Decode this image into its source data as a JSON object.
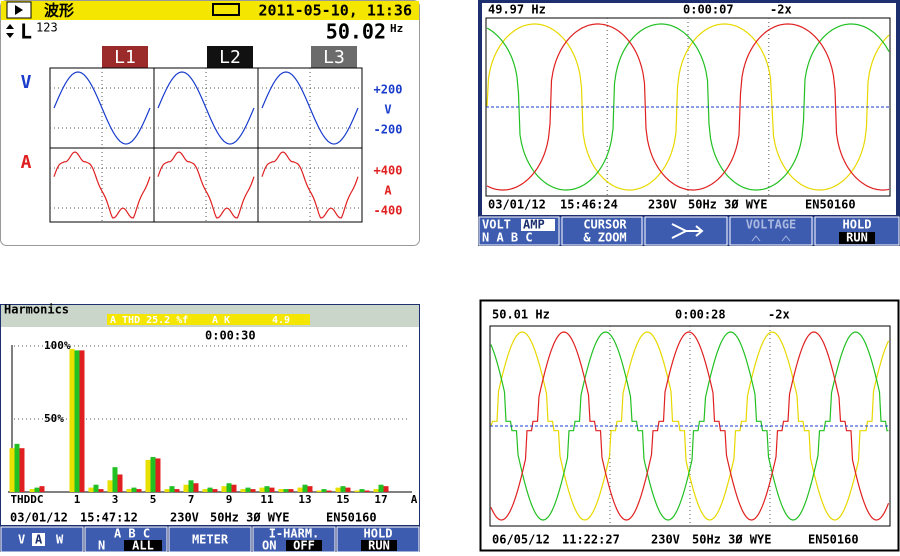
{
  "scope_panel": {
    "title": "波形",
    "datetime": "2011-05-10, 11:36",
    "phase_label": "L",
    "phase_sup": "123",
    "frequency": "50.02",
    "frequency_unit": "Hz",
    "tabs": [
      "L1",
      "L2",
      "L3"
    ],
    "voltage_label": "V",
    "current_label": "A",
    "voltage_scale": [
      "+200",
      "V",
      "-200"
    ],
    "current_scale": [
      "+400",
      "A",
      "-400"
    ]
  },
  "waveform_panel_1": {
    "frequency": "49.97 Hz",
    "elapsed": "0:00:07",
    "zoom": "-2x",
    "date": "03/01/12",
    "time": "15:46:24",
    "nominal_voltage": "230V",
    "config": "50Hz 3Ø WYE",
    "standard": "EN50160",
    "buttons": {
      "volt": "VOLT",
      "amp": "AMP",
      "phases": "N A B C",
      "cursor": "CURSOR",
      "zoom": "& ZOOM",
      "voltage": "VOLTAGE",
      "hold": "HOLD",
      "run": "RUN"
    }
  },
  "harmonics_panel": {
    "title": "Harmonics",
    "thd": "A THD 25.2 %f",
    "k_label": "A K",
    "k_value": "4.9",
    "elapsed": "0:00:30",
    "date": "03/01/12",
    "time": "15:47:12",
    "nominal_voltage": "230V",
    "config": "50Hz 3Ø WYE",
    "standard": "EN50160",
    "chart": {
      "type": "bar",
      "ylim": [
        0,
        100
      ],
      "yticks": [
        {
          "value": 100,
          "label": "100%"
        },
        {
          "value": 50,
          "label": "50%"
        }
      ],
      "x_labels": [
        "THDDC",
        "1",
        "3",
        "5",
        "7",
        "9",
        "11",
        "13",
        "15",
        "17",
        "A"
      ],
      "series": [
        {
          "color": "#e8e000",
          "values": [
            30,
            2,
            98,
            3,
            8,
            2,
            22,
            2,
            5,
            2,
            4,
            2,
            3,
            2,
            3,
            1,
            3,
            1,
            2
          ]
        },
        {
          "color": "#22c022",
          "values": [
            33,
            3,
            97,
            5,
            17,
            3,
            24,
            4,
            8,
            3,
            6,
            3,
            4,
            2,
            5,
            2,
            4,
            2,
            5
          ]
        },
        {
          "color": "#e02020",
          "values": [
            30,
            4,
            97,
            2,
            12,
            2,
            23,
            2,
            6,
            2,
            5,
            2,
            3,
            2,
            4,
            1,
            3,
            1,
            4
          ]
        }
      ]
    },
    "buttons": {
      "v": "V",
      "a": "A",
      "w": "W",
      "abc": "A B C",
      "n": "N",
      "all": "ALL",
      "meter": "METER",
      "iharm": "I-HARM.",
      "on": "ON",
      "off": "OFF",
      "hold": "HOLD",
      "run": "RUN"
    }
  },
  "waveform_panel_2": {
    "frequency": "50.01 Hz",
    "elapsed": "0:00:28",
    "zoom": "-2x",
    "date": "06/05/12",
    "time": "11:22:27",
    "nominal_voltage": "230V",
    "config": "50Hz 3Ø WYE",
    "standard": "EN50160"
  }
}
